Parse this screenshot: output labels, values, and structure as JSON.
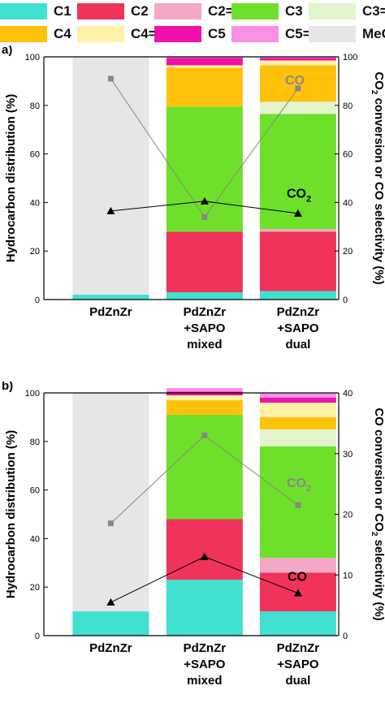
{
  "legend": [
    {
      "label": "C1",
      "color": "#40e0d0"
    },
    {
      "label": "C2",
      "color": "#f0335a"
    },
    {
      "label": "C2=",
      "color": "#f4a7c6"
    },
    {
      "label": "C3",
      "color": "#6ee02a"
    },
    {
      "label": "C3=",
      "color": "#e2f5cd"
    },
    {
      "label": "C4",
      "color": "#ffc10a"
    },
    {
      "label": "C4=",
      "color": "#fff2a6"
    },
    {
      "label": "C5",
      "color": "#ef11aa"
    },
    {
      "label": "C5=",
      "color": "#f990e4"
    },
    {
      "label": "MeOH",
      "color": "#e6e6e6"
    }
  ],
  "chart_data": [
    {
      "panel": "a)",
      "type": "bar",
      "stacked": true,
      "categories": [
        [
          "PdZnZr"
        ],
        [
          "PdZnZr",
          "+SAPO",
          "mixed"
        ],
        [
          "PdZnZr",
          "+SAPO",
          "dual"
        ]
      ],
      "ylabel": "Hydrocarbon distribution (%)",
      "ylim": [
        0,
        100
      ],
      "yticks": [
        0,
        20,
        40,
        60,
        80,
        100
      ],
      "series": [
        {
          "name": "C1",
          "values": [
            2,
            3,
            3.5
          ]
        },
        {
          "name": "C2",
          "values": [
            0,
            25,
            24.5
          ]
        },
        {
          "name": "C2=",
          "values": [
            0,
            0,
            1
          ]
        },
        {
          "name": "C3",
          "values": [
            0,
            51.5,
            47.5
          ]
        },
        {
          "name": "C3=",
          "values": [
            0,
            0,
            5
          ]
        },
        {
          "name": "C4",
          "values": [
            0,
            16,
            15
          ]
        },
        {
          "name": "C4=",
          "values": [
            0,
            1,
            2
          ]
        },
        {
          "name": "C5",
          "values": [
            0,
            3,
            1
          ]
        },
        {
          "name": "C5=",
          "values": [
            0,
            0.5,
            0.5
          ]
        },
        {
          "name": "MeOH",
          "values": [
            98,
            0,
            0
          ]
        }
      ],
      "y2label": [
        "CO",
        "2",
        " conversion or CO selectivity (%)"
      ],
      "y2lim": [
        0,
        100
      ],
      "y2ticks": [
        0,
        20,
        40,
        60,
        80,
        100
      ],
      "lines": [
        {
          "label": "CO",
          "label_sub": "",
          "label_color": "#888888",
          "marker": "square",
          "color": "#888888",
          "values": [
            91,
            34,
            87
          ]
        },
        {
          "label": "CO",
          "label_sub": "2",
          "label_color": "#000000",
          "marker": "triangle",
          "color": "#000000",
          "values": [
            36.5,
            40.5,
            35.5
          ]
        }
      ]
    },
    {
      "panel": "b)",
      "type": "bar",
      "stacked": true,
      "categories": [
        [
          "PdZnZr"
        ],
        [
          "PdZnZr",
          "+SAPO",
          "mixed"
        ],
        [
          "PdZnZr",
          "+SAPO",
          "dual"
        ]
      ],
      "ylabel": "Hydrocarbon distribution (%)",
      "ylim": [
        0,
        100
      ],
      "yticks": [
        0,
        20,
        40,
        60,
        80,
        100
      ],
      "series": [
        {
          "name": "C1",
          "values": [
            10,
            23,
            10
          ]
        },
        {
          "name": "C2",
          "values": [
            0,
            25,
            16
          ]
        },
        {
          "name": "C2=",
          "values": [
            0,
            0,
            6
          ]
        },
        {
          "name": "C3",
          "values": [
            0,
            43,
            46
          ]
        },
        {
          "name": "C3=",
          "values": [
            0,
            0,
            7
          ]
        },
        {
          "name": "C4",
          "values": [
            0,
            6,
            5
          ]
        },
        {
          "name": "C4=",
          "values": [
            0,
            2,
            6
          ]
        },
        {
          "name": "C5",
          "values": [
            0,
            1.5,
            2
          ]
        },
        {
          "name": "C5=",
          "values": [
            0,
            1.5,
            2
          ]
        },
        {
          "name": "MeOH",
          "values": [
            90,
            0,
            0
          ]
        }
      ],
      "y2label": [
        "CO conversion or CO",
        "2",
        " selectivity (%)"
      ],
      "y2lim": [
        0,
        40
      ],
      "y2ticks": [
        0,
        10,
        20,
        30,
        40
      ],
      "lines": [
        {
          "label": "CO",
          "label_sub": "2",
          "label_color": "#888888",
          "marker": "square",
          "color": "#888888",
          "values": [
            18.5,
            33,
            21.5
          ]
        },
        {
          "label": "CO",
          "label_sub": "",
          "label_color": "#000000",
          "marker": "triangle",
          "color": "#000000",
          "values": [
            5.5,
            13,
            7
          ]
        }
      ]
    }
  ]
}
